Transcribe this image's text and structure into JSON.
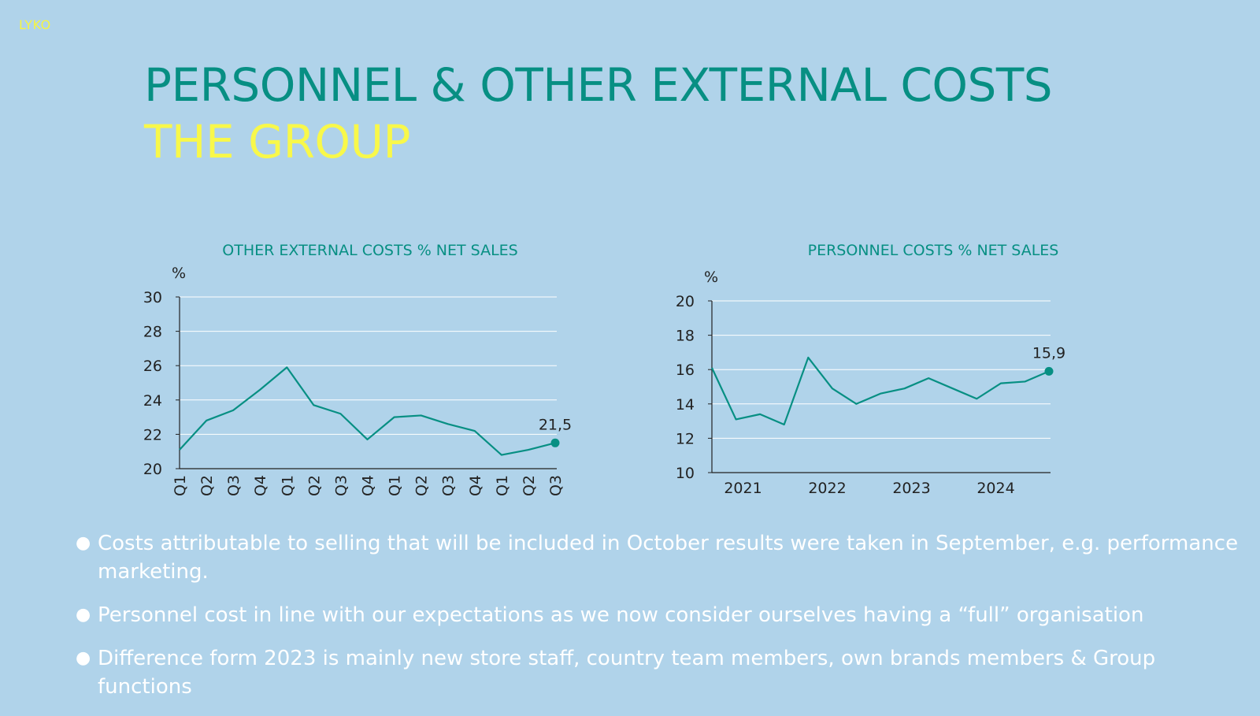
{
  "logo": "LYKO",
  "title": {
    "part1": "PERSONNEL & OTHER EXTERNAL COSTS ",
    "part2": "THE GROUP"
  },
  "colors": {
    "background": "#b0d3ea",
    "accent": "#078f83",
    "highlight": "#f8f84a",
    "gridline": "#ffffff"
  },
  "chart_data": [
    {
      "type": "line",
      "title": "OTHER EXTERNAL COSTS  % NET SALES",
      "ylabel": "%",
      "xlabel": "",
      "ylim": [
        20,
        30
      ],
      "yticks": [
        20,
        22,
        24,
        26,
        28,
        30
      ],
      "categories": [
        "Q1",
        "Q2",
        "Q3",
        "Q4",
        "Q1",
        "Q2",
        "Q3",
        "Q4",
        "Q1",
        "Q2",
        "Q3",
        "Q4",
        "Q1",
        "Q2",
        "Q3"
      ],
      "values": [
        21.1,
        22.8,
        23.4,
        24.6,
        25.9,
        23.7,
        23.2,
        21.7,
        23.0,
        23.1,
        22.6,
        22.2,
        20.8,
        21.1,
        21.5
      ],
      "grid": true,
      "last_point_label": "21,5"
    },
    {
      "type": "line",
      "title": "PERSONNEL COSTS % NET SALES",
      "ylabel": "%",
      "xlabel": "",
      "ylim": [
        10,
        20
      ],
      "yticks": [
        10,
        12,
        14,
        16,
        18,
        20
      ],
      "x_labels": [
        "2021",
        "2022",
        "2023",
        "2024"
      ],
      "values": [
        16.1,
        13.1,
        13.4,
        12.8,
        16.7,
        14.9,
        14.0,
        14.6,
        14.9,
        15.5,
        14.9,
        14.3,
        15.2,
        15.3,
        15.9
      ],
      "grid": true,
      "last_point_label": "15,9"
    }
  ],
  "bullets": [
    "Costs attributable to selling that will be included in October results were taken in September, e.g. performance marketing.",
    "Personnel cost in line with our expectations as we now consider ourselves having a “full” organisation",
    "Difference form 2023 is mainly new store staff, country team members, own brands members & Group functions"
  ]
}
